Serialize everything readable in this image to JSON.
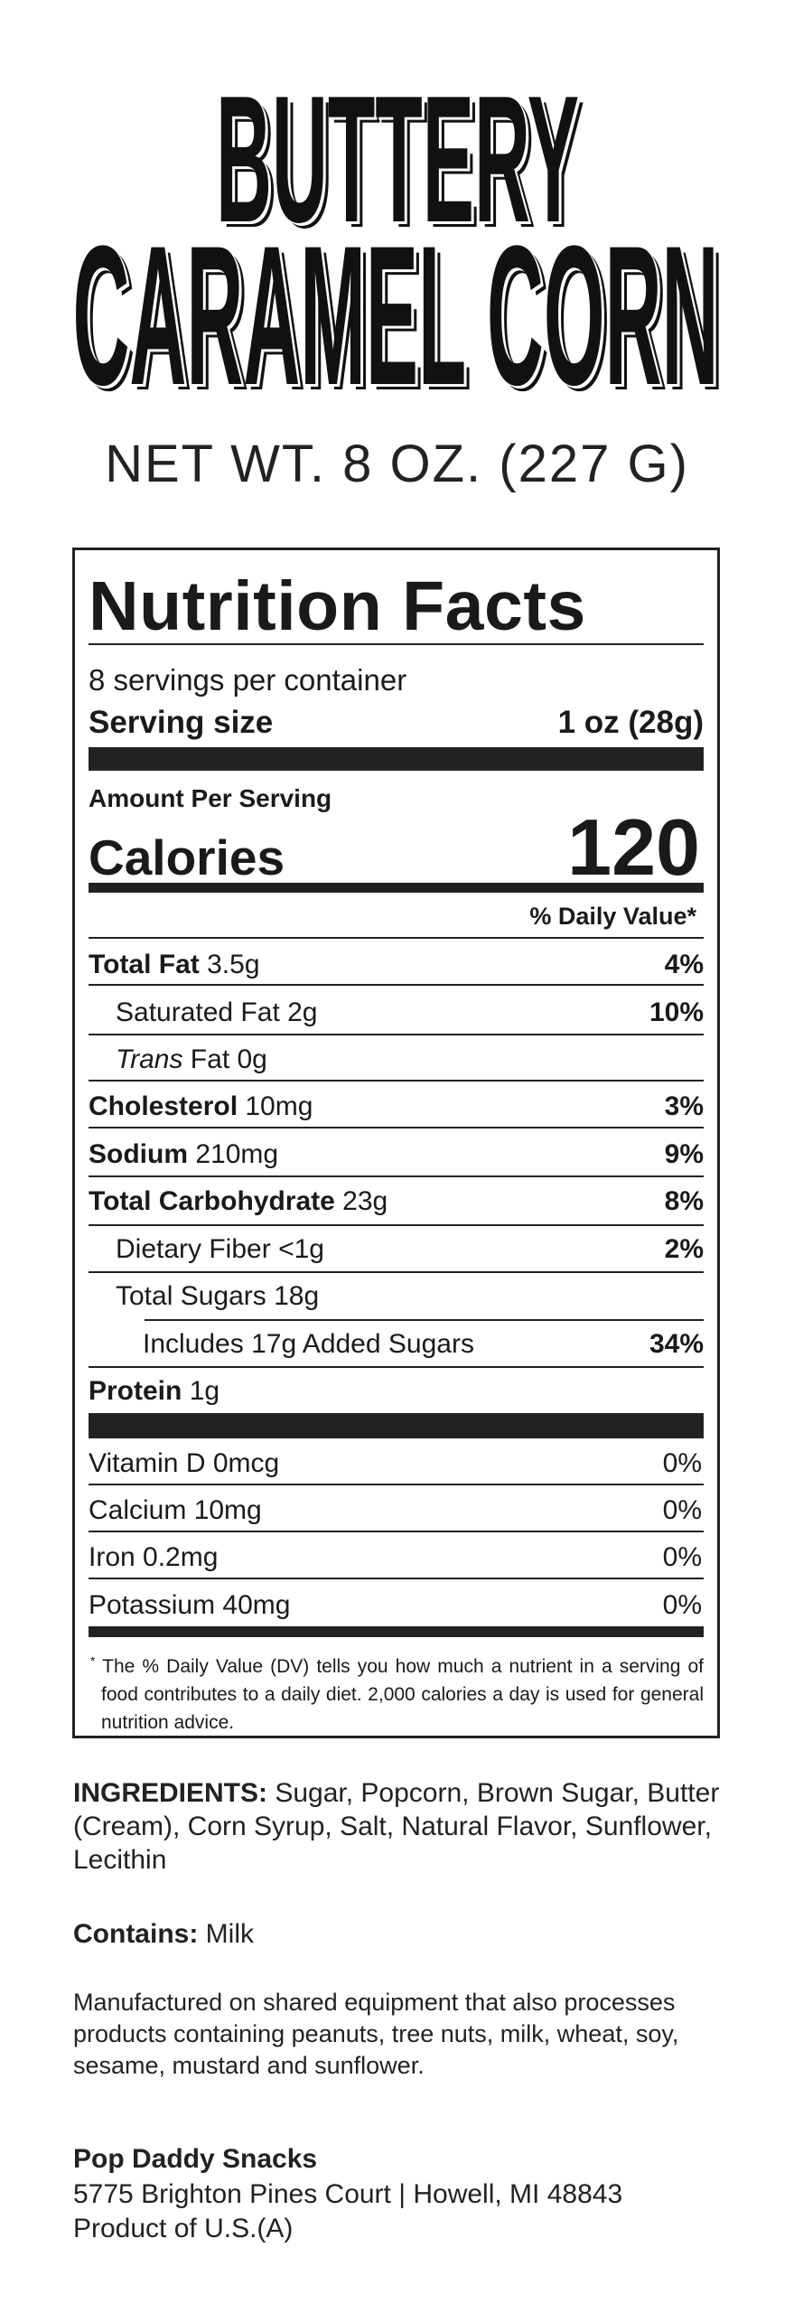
{
  "product": {
    "title_line1": "BUTTERY",
    "title_line2": "CARAMEL CORN",
    "net_weight": "NET WT. 8 OZ. (227 G)"
  },
  "nutrition": {
    "title": "Nutrition Facts",
    "servings_per_container": "8 servings per container",
    "serving_size_label": "Serving size",
    "serving_size_value": "1 oz (28g)",
    "amount_per_serving": "Amount Per Serving",
    "calories_label": "Calories",
    "calories_value": "120",
    "daily_value_header": "% Daily Value*",
    "rows": [
      {
        "name": "Total Fat",
        "amount": "3.5g",
        "dv": "4%"
      },
      {
        "name": "Saturated Fat",
        "amount": "2g",
        "dv": "10%"
      },
      {
        "name": "Trans",
        "name_suffix": " Fat",
        "amount": "0g",
        "dv": ""
      },
      {
        "name": "Cholesterol",
        "amount": "10mg",
        "dv": "3%"
      },
      {
        "name": "Sodium",
        "amount": "210mg",
        "dv": "9%"
      },
      {
        "name": "Total Carbohydrate",
        "amount": "23g",
        "dv": "8%"
      },
      {
        "name": "Dietary Fiber",
        "amount": "<1g",
        "dv": "2%"
      },
      {
        "name": "Total Sugars",
        "amount": "18g",
        "dv": ""
      },
      {
        "name": "Includes 17g Added Sugars",
        "amount": "",
        "dv": "34%"
      },
      {
        "name": "Protein",
        "amount": "1g",
        "dv": ""
      }
    ],
    "vitamins": [
      {
        "name": "Vitamin D 0mcg",
        "dv": "0%"
      },
      {
        "name": "Calcium 10mg",
        "dv": "0%"
      },
      {
        "name": "Iron 0.2mg",
        "dv": "0%"
      },
      {
        "name": "Potassium 40mg",
        "dv": "0%"
      }
    ],
    "footnote_mark": "*",
    "footnote": "The % Daily Value (DV) tells you how much a nutrient in a serving of food contributes to a daily diet. 2,000 calories a day is used for general nutrition advice."
  },
  "ingredients": {
    "label": "INGREDIENTS:",
    "text": " Sugar, Popcorn, Brown Sugar, Butter (Cream), Corn Syrup, Salt, Natural Flavor, Sunflower, Lecithin"
  },
  "allergens": {
    "label": "Contains:",
    "text": " Milk",
    "shared_equipment": "Manufactured on shared equipment that also processes products containing peanuts, tree nuts, milk, wheat, soy, sesame, mustard and sunflower."
  },
  "manufacturer": {
    "name": "Pop Daddy Snacks",
    "address": "5775 Brighton Pines Court | Howell, MI 48843",
    "origin": "Product of U.S.(A)"
  }
}
